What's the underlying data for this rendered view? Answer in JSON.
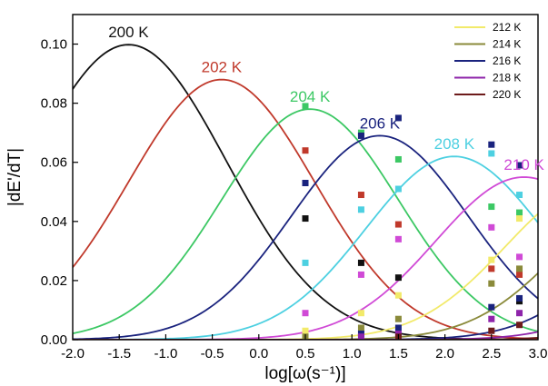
{
  "chart_data": {
    "type": "line",
    "xlabel": "log[ω(s⁻¹)]",
    "ylabel": "|dE'/dT|",
    "xlim": [
      -2.0,
      3.0
    ],
    "ylim": [
      0.0,
      0.11
    ],
    "xticks": [
      "-2.0",
      "-1.5",
      "-1.0",
      "-0.5",
      "0.0",
      "0.5",
      "1.0",
      "1.5",
      "2.0",
      "2.5",
      "3.0"
    ],
    "yticks": [
      "0.00",
      "0.02",
      "0.04",
      "0.06",
      "0.08",
      "0.10"
    ],
    "legend_position": "top-right",
    "series": [
      {
        "name": "200 K",
        "color": "#111111",
        "label_pos": "peak",
        "peak_x": -1.4,
        "peak_y": 0.0998,
        "width": 1.05,
        "points": [
          {
            "x": 0.5,
            "y": 0.041
          },
          {
            "x": 1.1,
            "y": 0.026
          },
          {
            "x": 1.5,
            "y": 0.021
          },
          {
            "x": 2.8,
            "y": 0.013
          }
        ]
      },
      {
        "name": "202 K",
        "color": "#c0392b",
        "label_pos": "peak",
        "peak_x": -0.4,
        "peak_y": 0.088,
        "width": 1.0,
        "points": [
          {
            "x": 0.5,
            "y": 0.064
          },
          {
            "x": 1.1,
            "y": 0.049
          },
          {
            "x": 1.5,
            "y": 0.039
          },
          {
            "x": 2.5,
            "y": 0.024
          },
          {
            "x": 2.8,
            "y": 0.022
          }
        ]
      },
      {
        "name": "204 K",
        "color": "#3cc864",
        "label_pos": "peak",
        "peak_x": 0.55,
        "peak_y": 0.078,
        "width": 0.95,
        "points": [
          {
            "x": 0.5,
            "y": 0.079
          },
          {
            "x": 1.1,
            "y": 0.07
          },
          {
            "x": 1.5,
            "y": 0.061
          },
          {
            "x": 2.5,
            "y": 0.045
          },
          {
            "x": 2.8,
            "y": 0.043
          }
        ]
      },
      {
        "name": "206 K",
        "color": "#1a237e",
        "label_pos": "peak",
        "peak_x": 1.3,
        "peak_y": 0.069,
        "width": 0.95,
        "points": [
          {
            "x": 0.5,
            "y": 0.053
          },
          {
            "x": 1.1,
            "y": 0.069
          },
          {
            "x": 1.5,
            "y": 0.075
          },
          {
            "x": 2.5,
            "y": 0.066
          },
          {
            "x": 2.8,
            "y": 0.059
          }
        ]
      },
      {
        "name": "208 K",
        "color": "#4dd0e1",
        "label_pos": "peak",
        "peak_x": 2.1,
        "peak_y": 0.062,
        "width": 0.95,
        "points": [
          {
            "x": 0.5,
            "y": 0.026
          },
          {
            "x": 1.1,
            "y": 0.044
          },
          {
            "x": 1.5,
            "y": 0.051
          },
          {
            "x": 2.5,
            "y": 0.063
          },
          {
            "x": 2.8,
            "y": 0.049
          }
        ]
      },
      {
        "name": "210 K",
        "color": "#d04ad6",
        "label_pos": "peak",
        "peak_x": 2.85,
        "peak_y": 0.055,
        "width": 0.95,
        "points": [
          {
            "x": 0.5,
            "y": 0.009
          },
          {
            "x": 1.1,
            "y": 0.022
          },
          {
            "x": 1.5,
            "y": 0.034
          },
          {
            "x": 2.5,
            "y": 0.038
          },
          {
            "x": 2.8,
            "y": 0.028
          }
        ]
      },
      {
        "name": "212 K",
        "color": "#f2ea6a",
        "label_pos": "legend",
        "peak_x": 3.6,
        "peak_y": 0.052,
        "width": 0.95,
        "points": [
          {
            "x": 0.5,
            "y": 0.003
          },
          {
            "x": 1.1,
            "y": 0.009
          },
          {
            "x": 1.5,
            "y": 0.015
          },
          {
            "x": 2.5,
            "y": 0.027
          },
          {
            "x": 2.8,
            "y": 0.041
          }
        ]
      },
      {
        "name": "214 K",
        "color": "#8a8a3a",
        "label_pos": "legend",
        "peak_x": 4.2,
        "peak_y": 0.05,
        "width": 0.95,
        "points": [
          {
            "x": 0.5,
            "y": 0.001
          },
          {
            "x": 1.1,
            "y": 0.004
          },
          {
            "x": 1.5,
            "y": 0.007
          },
          {
            "x": 2.5,
            "y": 0.019
          },
          {
            "x": 2.8,
            "y": 0.024
          }
        ]
      },
      {
        "name": "216 K",
        "color": "#1a237e",
        "label_pos": "legend",
        "peak_x": 4.8,
        "peak_y": 0.05,
        "width": 0.95,
        "points": [
          {
            "x": 1.1,
            "y": 0.002
          },
          {
            "x": 1.5,
            "y": 0.004
          },
          {
            "x": 2.5,
            "y": 0.011
          },
          {
            "x": 2.8,
            "y": 0.014
          }
        ]
      },
      {
        "name": "218 K",
        "color": "#8e24aa",
        "label_pos": "legend",
        "peak_x": 5.3,
        "peak_y": 0.05,
        "width": 0.95,
        "points": [
          {
            "x": 1.1,
            "y": 0.001
          },
          {
            "x": 1.5,
            "y": 0.002
          },
          {
            "x": 2.5,
            "y": 0.007
          },
          {
            "x": 2.8,
            "y": 0.009
          }
        ]
      },
      {
        "name": "220 K",
        "color": "#6d1b1b",
        "label_pos": "legend",
        "peak_x": 5.8,
        "peak_y": 0.05,
        "width": 0.95,
        "points": [
          {
            "x": 1.5,
            "y": 0.001
          },
          {
            "x": 2.5,
            "y": 0.003
          },
          {
            "x": 2.8,
            "y": 0.005
          }
        ]
      }
    ]
  }
}
